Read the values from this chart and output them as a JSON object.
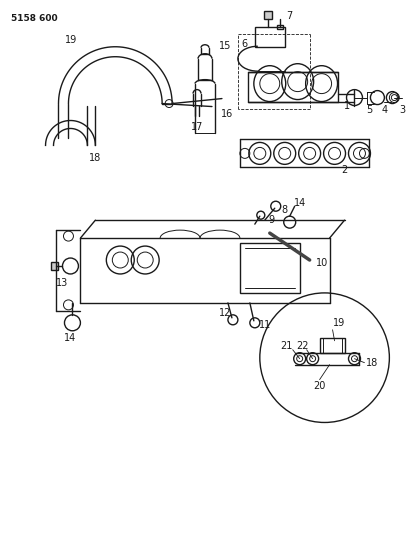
{
  "title_code": "5158 600",
  "bg_color": "#ffffff",
  "line_color": "#1a1a1a",
  "figure_width": 4.1,
  "figure_height": 5.33,
  "dpi": 100
}
